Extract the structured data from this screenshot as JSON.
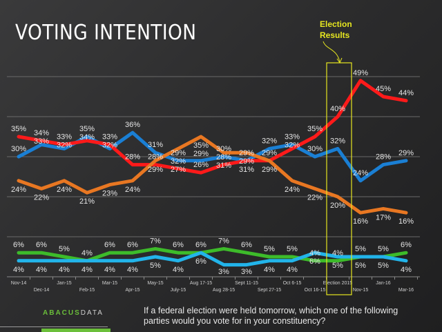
{
  "title": "VOTING INTENTION",
  "annotation": {
    "line1": "Election",
    "line2": "Results",
    "color": "#e6e620"
  },
  "question": "If a federal election were held tomorrow, which one of the following parties would you vote for in your constituency?",
  "logo": {
    "part1": "ABACUS",
    "part2": "DATA"
  },
  "chart_data": {
    "type": "line",
    "categories": [
      "Nov-14",
      "Dec-14",
      "Jan-15",
      "Feb-15",
      "Mar-15",
      "Apr-15",
      "May-15",
      "July-15",
      "Aug 17-15",
      "Aug 28-15",
      "Sept 11-15",
      "Sept 27-15",
      "Oct 6-15",
      "Oct 16-15",
      "Election 2015",
      "Nov-15",
      "Jan-16",
      "Mar-16"
    ],
    "ylim": [
      0,
      55
    ],
    "grid": true,
    "highlight_category": "Election 2015",
    "series": [
      {
        "color": "#1a7fd4",
        "label_pos": "above",
        "values": [
          30,
          33,
          32,
          35,
          32,
          36,
          31,
          29,
          29,
          30,
          29,
          32,
          33,
          30,
          32,
          24,
          28,
          29
        ]
      },
      {
        "color": "#ff1a1a",
        "label_pos": "above",
        "values": [
          35,
          34,
          33,
          34,
          33,
          28,
          28,
          27,
          26,
          28,
          29,
          29,
          32,
          35,
          40,
          49,
          45,
          44
        ]
      },
      {
        "color": "#e87722",
        "label_pos": "below",
        "values": [
          24,
          22,
          24,
          21,
          23,
          24,
          29,
          32,
          35,
          31,
          31,
          29,
          24,
          22,
          20,
          16,
          17,
          16
        ]
      },
      {
        "color": "#3dbb2a",
        "label_pos": "above",
        "values": [
          6,
          6,
          5,
          4,
          6,
          6,
          7,
          6,
          6,
          7,
          6,
          5,
          5,
          4,
          4,
          5,
          5,
          6
        ]
      },
      {
        "color": "#22b4ea",
        "label_pos": "below",
        "values": [
          4,
          4,
          4,
          4,
          4,
          4,
          5,
          4,
          6,
          3,
          3,
          4,
          4,
          6,
          5,
          5,
          5,
          4
        ]
      }
    ]
  }
}
